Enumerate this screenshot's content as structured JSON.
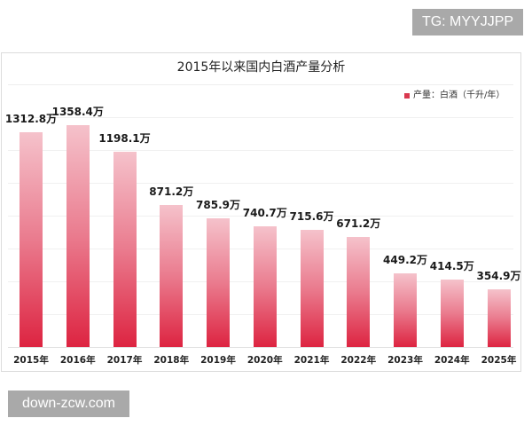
{
  "watermarks": {
    "top_right": "TG: MYYJJPP",
    "bottom_left": "down-zcw.com"
  },
  "chart_data": {
    "type": "bar",
    "title": "2015年以来国内白酒产量分析",
    "legend": [
      "产量：白酒（千升/年）"
    ],
    "legend_position": "top-right",
    "xlabel": "",
    "ylabel": "",
    "grid": true,
    "categories": [
      "2015年",
      "2016年",
      "2017年",
      "2018年",
      "2019年",
      "2020年",
      "2021年",
      "2022年",
      "2023年",
      "2024年",
      "2025年"
    ],
    "series": [
      {
        "name": "产量：白酒（千升/年）",
        "values": [
          1312.8,
          1358.4,
          1198.1,
          871.2,
          785.9,
          740.7,
          715.6,
          671.2,
          449.2,
          414.5,
          354.9
        ],
        "color": "#dd2441"
      }
    ],
    "data_labels": [
      "1312.8万",
      "1358.4万",
      "1198.1万",
      "871.2万",
      "785.9万",
      "740.7万",
      "715.6万",
      "671.2万",
      "449.2万",
      "414.5万",
      "354.9万"
    ],
    "ylim": [
      0,
      1500
    ]
  }
}
